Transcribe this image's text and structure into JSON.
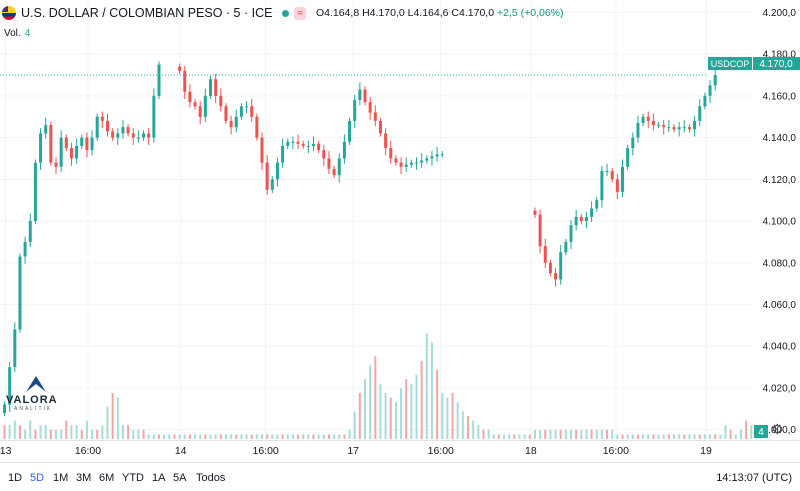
{
  "header": {
    "symbol": "U.S. DOLLAR / COLOMBIAN PESO · 5 · ICE",
    "badge": "≈",
    "open": "O4.164,8",
    "high": "H4.170,0",
    "low": "L4.164,6",
    "close": "C4.170,0",
    "change": "+2,5 (+0,06%)"
  },
  "volume": {
    "label": "Vol.",
    "value": "4"
  },
  "colors": {
    "up": "#26a69a",
    "down": "#ef5350",
    "grid": "#f0f3fa",
    "axis_text": "#131722"
  },
  "last_price": {
    "symbol": "USDCOP",
    "value": "4.170,0",
    "volume_badge": "4"
  },
  "logo": {
    "text": "VALORA",
    "sub": "ANALITIK"
  },
  "timeframes": [
    {
      "label": "1D",
      "active": false
    },
    {
      "label": "5D",
      "active": true
    },
    {
      "label": "1M",
      "active": false
    },
    {
      "label": "3M",
      "active": false
    },
    {
      "label": "6M",
      "active": false
    },
    {
      "label": "YTD",
      "active": false
    },
    {
      "label": "1A",
      "active": false
    },
    {
      "label": "5A",
      "active": false
    },
    {
      "label": "Todos",
      "active": false
    }
  ],
  "clock": "14:13:07 (UTC)",
  "chart_data": {
    "type": "candlestick",
    "title": "",
    "ylim": [
      3996,
      4205
    ],
    "y_ticks": [
      4000,
      4020,
      4040,
      4060,
      4080,
      4100,
      4120,
      4140,
      4160,
      4180,
      4200
    ],
    "y_tick_labels": [
      "4.000,0",
      "4.020,0",
      "4.040,0",
      "4.060,0",
      "4.080,0",
      "4.100,0",
      "4.120,0",
      "4.140,0",
      "4.160,0",
      "4.180,0",
      "4.200,0"
    ],
    "x_ticks": [
      {
        "label": "13",
        "pos": 0.5
      },
      {
        "label": "16:00",
        "pos": 16.5
      },
      {
        "label": "14",
        "pos": 34.5
      },
      {
        "label": "16:00",
        "pos": 51
      },
      {
        "label": "17",
        "pos": 68
      },
      {
        "label": "16:00",
        "pos": 85
      },
      {
        "label": "18",
        "pos": 102.5
      },
      {
        "label": "16:00",
        "pos": 119
      },
      {
        "label": "19",
        "pos": 136.5
      }
    ],
    "session_close": [
      {
        "start": 0,
        "closes": [
          4012,
          4030,
          4048,
          4083,
          4090,
          4100,
          4128,
          4142,
          4146,
          4128,
          4126,
          4140,
          4135,
          4130,
          4136,
          4140,
          4134,
          4140,
          4150,
          4148,
          4143,
          4140,
          4142,
          4145,
          4142,
          4140,
          4140,
          4142,
          4140,
          4160,
          4175
        ]
      },
      {
        "start": 34,
        "closes": [
          4172,
          4162,
          4157,
          4155,
          4150,
          4160,
          4168,
          4160,
          4155,
          4148,
          4145,
          4150,
          4155,
          4155,
          4150,
          4140,
          4128,
          4115,
          4120,
          4128,
          4136,
          4138,
          4138,
          4137,
          4136,
          4136,
          4137,
          4134,
          4130,
          4125,
          4122,
          4130,
          4138,
          4148,
          4158,
          4163,
          4157,
          4152,
          4148,
          4142,
          4135,
          4130,
          4128,
          4126,
          4127,
          4128,
          4128,
          4129,
          4130,
          4131,
          4132,
          4132
        ]
      },
      {
        "start": 103,
        "closes": [
          4103,
          4088,
          4080,
          4075,
          4072,
          4085,
          4090,
          4098,
          4102,
          4100,
          4102,
          4106,
          4110,
          4124,
          4124,
          4120,
          4114,
          4126,
          4135,
          4140,
          4147,
          4150,
          4148,
          4146,
          4146,
          4145,
          4145,
          4144,
          4145,
          4145,
          4144,
          4148,
          4155,
          4160,
          4165,
          4170
        ]
      }
    ],
    "volume": [
      3,
      3,
      4,
      3,
      2,
      4,
      2,
      3,
      3,
      2,
      2,
      2,
      4,
      3,
      3,
      2,
      4,
      2,
      2,
      3,
      7,
      10,
      9,
      3,
      3,
      2,
      2,
      2,
      1,
      1,
      1,
      1,
      1,
      1,
      1,
      1,
      1,
      1,
      1,
      1,
      1,
      1,
      1,
      1,
      1,
      1,
      1,
      1,
      1,
      1,
      1,
      1,
      1,
      1,
      1,
      1,
      1,
      1,
      1,
      1,
      1,
      1,
      1,
      1,
      1,
      1,
      1,
      2,
      6,
      10,
      13,
      16,
      18,
      12,
      10,
      9,
      8,
      11,
      13,
      12,
      14,
      17,
      23,
      21,
      15,
      10,
      9,
      10,
      8,
      6,
      5,
      4,
      3,
      2,
      2,
      1,
      1,
      1,
      1,
      1,
      1,
      1,
      1,
      2,
      2,
      2,
      2,
      2,
      2,
      2,
      2,
      2,
      2,
      2,
      2,
      2,
      2,
      2,
      2,
      1,
      1,
      1,
      1,
      1,
      1,
      1,
      1,
      1,
      1,
      1,
      1,
      1,
      1,
      1,
      1,
      1,
      1,
      1,
      1,
      1,
      3,
      2,
      1,
      2,
      4,
      3
    ],
    "vol_max": 25
  }
}
